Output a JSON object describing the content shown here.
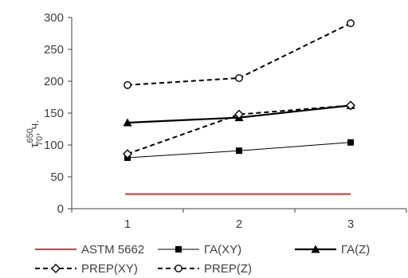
{
  "chart_data": {
    "type": "line",
    "categories": [
      "1",
      "2",
      "3"
    ],
    "x": [
      1,
      2,
      3
    ],
    "ylim": [
      0,
      300
    ],
    "yticks": [
      0,
      50,
      100,
      150,
      200,
      250,
      300
    ],
    "ylabel": {
      "main": "τ",
      "sup": "650",
      "sub": "70",
      "suffix": ", ч."
    },
    "grid": false,
    "legend_placement": "bottom",
    "series": [
      {
        "name": "ASTM 5662",
        "values": [
          23,
          23,
          23
        ],
        "color": "#c0504d",
        "style": "solid",
        "width": 2.2,
        "marker": "none"
      },
      {
        "name": "ГА(XY)",
        "values": [
          80,
          91,
          104
        ],
        "color": "#000000",
        "style": "solid",
        "width": 1.0,
        "marker": "square"
      },
      {
        "name": "ГА(Z)",
        "values": [
          135,
          143,
          162
        ],
        "color": "#000000",
        "style": "solid",
        "width": 2.2,
        "marker": "triangle"
      },
      {
        "name": "PREP(XY)",
        "values": [
          86,
          148,
          162
        ],
        "color": "#000000",
        "style": "dashed",
        "width": 2.0,
        "marker": "diamond-open"
      },
      {
        "name": "PREP(Z)",
        "values": [
          194,
          205,
          291
        ],
        "color": "#000000",
        "style": "dashed",
        "width": 2.0,
        "marker": "circle-open"
      }
    ]
  }
}
